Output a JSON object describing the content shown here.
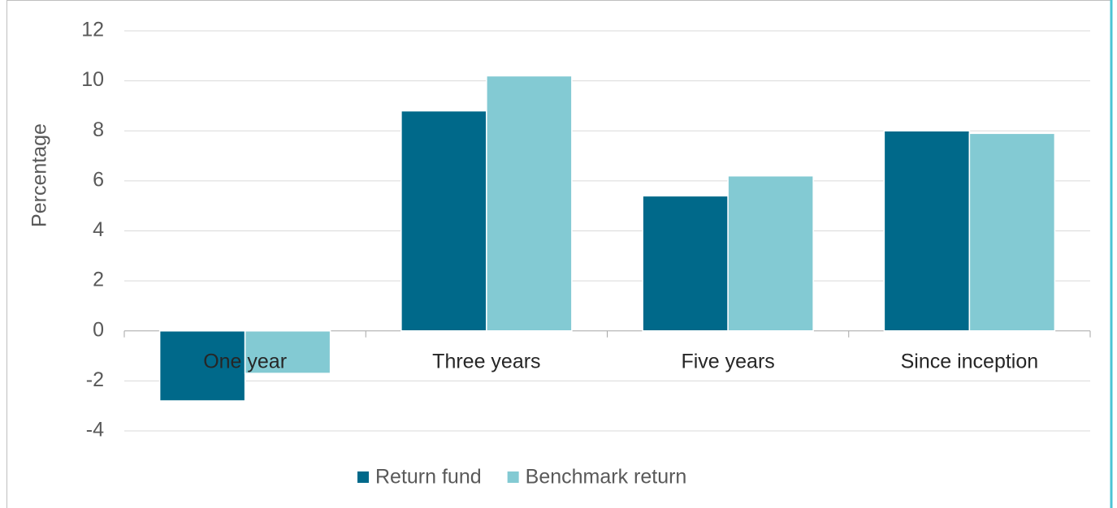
{
  "chart_data": {
    "type": "bar",
    "y_label": "Percentage",
    "categories": [
      "One year",
      "Three years",
      "Five years",
      "Since inception"
    ],
    "series": [
      {
        "name": "Return fund",
        "color": "#00698a",
        "values": [
          -2.8,
          8.8,
          5.4,
          8.0
        ]
      },
      {
        "name": "Benchmark return",
        "color": "#83cad3",
        "values": [
          -1.7,
          10.2,
          6.2,
          7.9
        ]
      }
    ],
    "ylim": [
      -4,
      12
    ],
    "yticks": [
      -4,
      -2,
      0,
      2,
      4,
      6,
      8,
      10,
      12
    ],
    "grid": true,
    "legend": "bottom"
  }
}
